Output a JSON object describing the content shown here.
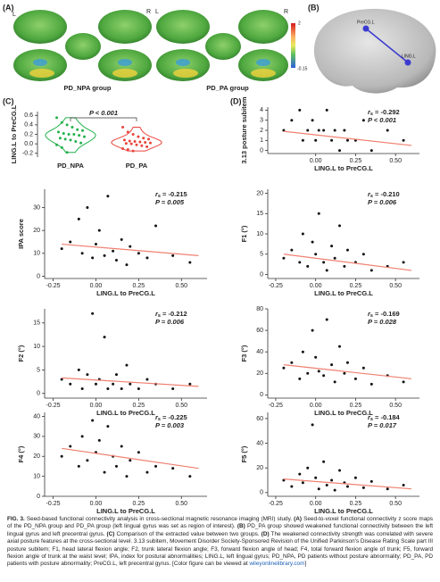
{
  "panel_labels": {
    "a": "(A)",
    "b": "(B)",
    "c": "(C)",
    "d": "(D)"
  },
  "panel_a": {
    "side_left_1": "L",
    "side_right_1": "R",
    "side_left_2": "L",
    "side_right_2": "R",
    "group_1": "PD_NPA group",
    "group_2": "PD_PA group",
    "colorbar_max": "2",
    "colorbar_min": "-0.15"
  },
  "panel_b": {
    "node_1": "PreCG.L",
    "node_2": "LING.L"
  },
  "stat_symbol": {
    "r": "r",
    "sub": "s"
  },
  "chart_data": [
    {
      "type": "violin",
      "ylabel": "LING.L to PreCG.L",
      "annotation": "P < 0.001",
      "categories": [
        "PD_NPA",
        "PD_PA"
      ],
      "series": [
        {
          "name": "PD_NPA",
          "color": "#22b14c",
          "values": [
            0.55,
            0.45,
            0.4,
            0.35,
            0.3,
            0.28,
            0.25,
            0.22,
            0.2,
            0.2,
            0.18,
            0.15,
            0.12,
            0.1,
            0.08,
            0.05,
            0.02,
            -0.02,
            -0.08,
            -0.18
          ]
        },
        {
          "name": "PD_PA",
          "color": "#e8453c",
          "values": [
            0.35,
            0.25,
            0.2,
            0.15,
            0.12,
            0.1,
            0.08,
            0.06,
            0.05,
            0.04,
            0.03,
            0.02,
            0.01,
            0,
            -0.02,
            -0.04,
            -0.06,
            -0.1,
            -0.12,
            -0.15
          ]
        }
      ],
      "ylim": [
        -0.28,
        0.68
      ],
      "yticks": [
        -0.2,
        {
          "value": 0,
          "label": "0.0"
        },
        0.2,
        0.4,
        0.6
      ]
    },
    {
      "type": "scatter",
      "ylabel": "3.13 posture subitem",
      "xlabel": "LING.L to PreCG.L",
      "r": "= -0.292",
      "p": "P < 0.001",
      "x": [
        -0.2,
        -0.15,
        -0.1,
        -0.08,
        -0.05,
        -0.02,
        0,
        0.02,
        0.05,
        0.07,
        0.1,
        0.12,
        0.15,
        0.18,
        0.2,
        0.25,
        0.3,
        0.35,
        0.45,
        0.55
      ],
      "y": [
        2,
        3,
        4,
        1,
        2,
        3,
        1,
        2,
        2,
        4,
        1,
        2,
        0,
        2,
        1,
        1,
        3,
        0,
        2,
        1
      ],
      "fit": {
        "x": [
          -0.2,
          0.6
        ],
        "y": [
          1.9,
          0.5
        ]
      },
      "xlim": [
        -0.3,
        0.65
      ],
      "ylim": [
        -0.3,
        4.3
      ],
      "xticks": [
        {
          "value": 0,
          "label": "0.00"
        },
        0.25,
        {
          "value": 0.5,
          "label": "0.50"
        }
      ],
      "yticks": [
        0,
        1,
        2,
        3,
        4
      ]
    },
    {
      "type": "scatter",
      "ylabel": "IPA score",
      "xlabel": "LING.L to PreCG.L",
      "r": "= -0.215",
      "p": "P = 0.005",
      "x": [
        -0.2,
        -0.15,
        -0.1,
        -0.08,
        -0.05,
        -0.02,
        0,
        0.02,
        0.05,
        0.07,
        0.1,
        0.12,
        0.15,
        0.18,
        0.2,
        0.25,
        0.3,
        0.35,
        0.45,
        0.55
      ],
      "y": [
        12,
        15,
        25,
        10,
        30,
        8,
        14,
        20,
        9,
        35,
        11,
        7,
        16,
        5,
        13,
        10,
        8,
        22,
        9,
        6
      ],
      "fit": {
        "x": [
          -0.2,
          0.6
        ],
        "y": [
          14,
          9
        ]
      },
      "xlim": [
        -0.3,
        0.65
      ],
      "ylim": [
        -1,
        38
      ],
      "xticks": [
        -0.25,
        {
          "value": 0,
          "label": "0.00"
        },
        0.25,
        {
          "value": 0.5,
          "label": "0.50"
        }
      ],
      "yticks": [
        0,
        10,
        20,
        30
      ]
    },
    {
      "type": "scatter",
      "ylabel": "F1 (°)",
      "xlabel": "LING.L to PreCG.L",
      "r": "= -0.210",
      "p": "P = 0.006",
      "x": [
        -0.2,
        -0.15,
        -0.1,
        -0.08,
        -0.05,
        -0.02,
        0,
        0.02,
        0.05,
        0.07,
        0.1,
        0.12,
        0.15,
        0.18,
        0.2,
        0.25,
        0.3,
        0.35,
        0.45,
        0.55
      ],
      "y": [
        4,
        6,
        3,
        10,
        2,
        8,
        5,
        15,
        3,
        1,
        7,
        4,
        12,
        2,
        6,
        3,
        5,
        1,
        2,
        3
      ],
      "fit": {
        "x": [
          -0.2,
          0.6
        ],
        "y": [
          5,
          1
        ]
      },
      "xlim": [
        -0.3,
        0.65
      ],
      "ylim": [
        -1,
        21
      ],
      "xticks": [
        -0.25,
        {
          "value": 0,
          "label": "0.00"
        },
        0.25,
        {
          "value": 0.5,
          "label": "0.50"
        }
      ],
      "yticks": [
        0,
        5,
        10,
        15,
        20
      ]
    },
    {
      "type": "scatter",
      "ylabel": "F2 (°)",
      "xlabel": "LING.L to PreCG.L",
      "r": "= -0.212",
      "p": "P = 0.006",
      "x": [
        -0.2,
        -0.15,
        -0.1,
        -0.08,
        -0.05,
        -0.02,
        0,
        0.02,
        0.05,
        0.07,
        0.1,
        0.12,
        0.15,
        0.18,
        0.2,
        0.25,
        0.3,
        0.35,
        0.45,
        0.55
      ],
      "y": [
        3,
        2,
        5,
        1,
        4,
        17,
        2,
        3,
        12,
        1,
        2,
        4,
        1,
        6,
        2,
        1,
        3,
        2,
        1,
        2
      ],
      "fit": {
        "x": [
          -0.2,
          0.6
        ],
        "y": [
          3.3,
          1.5
        ]
      },
      "xlim": [
        -0.3,
        0.65
      ],
      "ylim": [
        -1,
        18
      ],
      "xticks": [
        -0.25,
        {
          "value": 0,
          "label": "0.00"
        },
        0.25,
        {
          "value": 0.5,
          "label": "0.50"
        }
      ],
      "yticks": [
        0,
        5,
        10,
        15
      ]
    },
    {
      "type": "scatter",
      "ylabel": "F3 (°)",
      "xlabel": "LING.L to PreCG.L",
      "r": "= -0.169",
      "p": "P = 0.028",
      "x": [
        -0.2,
        -0.15,
        -0.1,
        -0.08,
        -0.05,
        -0.02,
        0,
        0.02,
        0.05,
        0.07,
        0.1,
        0.12,
        0.15,
        0.18,
        0.2,
        0.25,
        0.3,
        0.35,
        0.45,
        0.55
      ],
      "y": [
        25,
        30,
        15,
        40,
        20,
        60,
        35,
        22,
        18,
        70,
        28,
        12,
        45,
        20,
        30,
        15,
        25,
        10,
        18,
        12
      ],
      "fit": {
        "x": [
          -0.2,
          0.6
        ],
        "y": [
          28,
          15
        ]
      },
      "xlim": [
        -0.3,
        0.65
      ],
      "ylim": [
        -3,
        80
      ],
      "xticks": [
        -0.25,
        {
          "value": 0,
          "label": "0.00"
        },
        0.25,
        {
          "value": 0.5,
          "label": "0.50"
        }
      ],
      "yticks": [
        0,
        20,
        40,
        60,
        80
      ]
    },
    {
      "type": "scatter",
      "ylabel": "F4 (°)",
      "xlabel": "LING.L to PreCG.L",
      "r": "= -0.225",
      "p": "P = 0.003",
      "x": [
        -0.2,
        -0.15,
        -0.1,
        -0.08,
        -0.05,
        -0.02,
        0,
        0.02,
        0.05,
        0.07,
        0.1,
        0.12,
        0.15,
        0.18,
        0.2,
        0.25,
        0.3,
        0.35,
        0.45,
        0.55
      ],
      "y": [
        20,
        25,
        15,
        30,
        18,
        38,
        22,
        28,
        12,
        35,
        20,
        15,
        25,
        10,
        18,
        22,
        12,
        15,
        14,
        10
      ],
      "fit": {
        "x": [
          -0.2,
          0.6
        ],
        "y": [
          24,
          14
        ]
      },
      "xlim": [
        -0.3,
        0.65
      ],
      "ylim": [
        0,
        42
      ],
      "xticks": [
        -0.25,
        {
          "value": 0,
          "label": "0.00"
        },
        0.25,
        {
          "value": 0.5,
          "label": "0.50"
        }
      ],
      "yticks": [
        0,
        10,
        20,
        30,
        40
      ]
    },
    {
      "type": "scatter",
      "ylabel": "F5 (°)",
      "xlabel": "LING.L to PreCG.L",
      "r": "= -0.184",
      "p": "P = 0.017",
      "x": [
        -0.2,
        -0.15,
        -0.1,
        -0.08,
        -0.05,
        -0.02,
        0,
        0.02,
        0.05,
        0.07,
        0.1,
        0.12,
        0.15,
        0.18,
        0.2,
        0.25,
        0.3,
        0.35,
        0.45,
        0.55
      ],
      "y": [
        10,
        5,
        15,
        8,
        20,
        55,
        12,
        3,
        25,
        6,
        10,
        2,
        18,
        8,
        5,
        12,
        4,
        9,
        3,
        6
      ],
      "fit": {
        "x": [
          -0.2,
          0.6
        ],
        "y": [
          11,
          3
        ]
      },
      "xlim": [
        -0.3,
        0.65
      ],
      "ylim": [
        -3,
        65
      ],
      "xticks": [
        -0.25,
        {
          "value": 0,
          "label": "0.00"
        },
        0.25,
        {
          "value": 0.5,
          "label": "0.50"
        }
      ],
      "yticks": [
        0,
        20,
        40,
        60
      ]
    }
  ],
  "caption": [
    {
      "text": "FIG. 3.",
      "bold": true
    },
    {
      "text": " Seed-based functional connectivity analysis in cross-sectional magnetic resonance imaging (MRI) study. "
    },
    {
      "text": "(A)",
      "bold": true
    },
    {
      "text": " Seed-to-voxel functional connectivity z score maps of the PD_NPA group and PD_PA group (left lingual gyrus was set as region of interest). "
    },
    {
      "text": "(B)",
      "bold": true
    },
    {
      "text": " PD_PA group showed weakened functional connectivity between the left lingual gyrus and left precentral gyrus. "
    },
    {
      "text": "(C)",
      "bold": true
    },
    {
      "text": " Comparison of the extracted value between two groups. "
    },
    {
      "text": "(D)",
      "bold": true
    },
    {
      "text": " The weakened connectivity strength was correlated with severe axial posture features at the cross-sectional level. 3.13 subitem, Movement Disorder Society-Sponsored Revision of the Unified Parkinson's Disease Rating Scale part III posture subitem; F1, head lateral flexion angle; F2, trunk lateral flexion angle; F3, forward flexion angle of head; F4, total forward flexion angle of trunk; F5, forward flexion angle of trunk at the waist level; IPA, index for postural abnormalities; LING.L, left lingual gyrus; PD_NPA, PD patients without posture abnormality; PD_PA, PD patients with posture abnormality; PreCG.L, left precentral gyrus. [Color figure can be viewed at "
    },
    {
      "text": "wileyonlinelibrary.com",
      "link": true
    },
    {
      "text": "]"
    }
  ]
}
